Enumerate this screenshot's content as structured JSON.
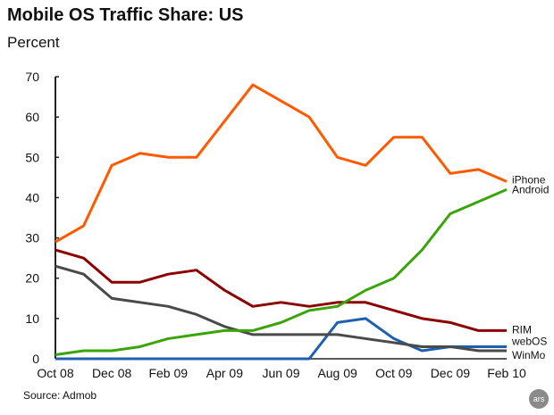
{
  "chart_data": {
    "type": "line",
    "title": "Mobile OS Traffic Share: US",
    "ylabel": "Percent",
    "source": "Source: Admob",
    "logo": "ars",
    "ylim": [
      0,
      70
    ],
    "yticks": [
      0,
      10,
      20,
      30,
      40,
      50,
      60,
      70
    ],
    "x": [
      "Oct 08",
      "Nov 08",
      "Dec 08",
      "Jan 09",
      "Feb 09",
      "Mar 09",
      "Apr 09",
      "May 09",
      "Jun 09",
      "Jul 09",
      "Aug 09",
      "Sep 09",
      "Oct 09",
      "Nov 09",
      "Dec 09",
      "Jan 10",
      "Feb 10"
    ],
    "xtick_labels": [
      "Oct 08",
      "Dec 08",
      "Feb 09",
      "Apr 09",
      "Jun 09",
      "Aug 09",
      "Oct 09",
      "Dec 09",
      "Feb 10"
    ],
    "grid": false,
    "legend": "inline-right",
    "series": [
      {
        "name": "iPhone",
        "color": "#ff5a00",
        "values": [
          29,
          33,
          48,
          51,
          50,
          50,
          59,
          68,
          64,
          60,
          50,
          48,
          55,
          55,
          46,
          47,
          44
        ]
      },
      {
        "name": "Android",
        "color": "#3aa40a",
        "values": [
          1,
          2,
          2,
          3,
          5,
          6,
          7,
          7,
          9,
          12,
          13,
          17,
          20,
          27,
          36,
          39,
          42
        ]
      },
      {
        "name": "RIM",
        "color": "#8b0000",
        "values": [
          27,
          25,
          19,
          19,
          21,
          22,
          17,
          13,
          14,
          13,
          14,
          14,
          12,
          10,
          9,
          7,
          7
        ]
      },
      {
        "name": "webOS",
        "color": "#1f5fb0",
        "values": [
          0,
          0,
          0,
          0,
          0,
          0,
          0,
          0,
          0,
          0,
          9,
          10,
          5,
          2,
          3,
          3,
          3
        ]
      },
      {
        "name": "WinMo",
        "color": "#4a4a4a",
        "values": [
          23,
          21,
          15,
          14,
          13,
          11,
          8,
          6,
          6,
          6,
          6,
          5,
          4,
          3,
          3,
          2,
          2
        ]
      }
    ]
  }
}
